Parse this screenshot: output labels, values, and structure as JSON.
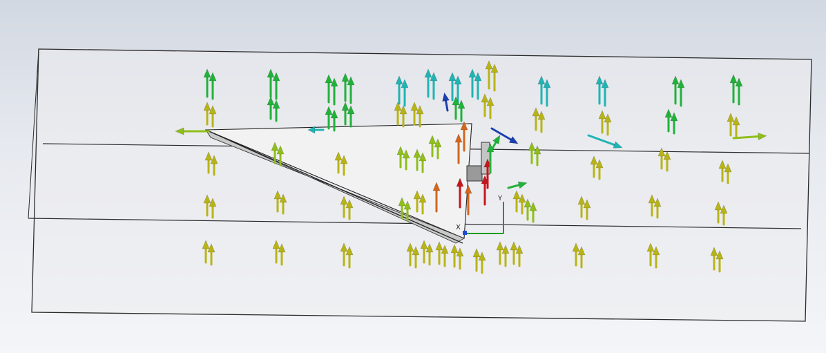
{
  "viewport": {
    "background_top": "#d2d8e2",
    "background_bottom": "#f4f5f8"
  },
  "triad": {
    "x_label": "X",
    "y_label": "Y",
    "x_color": "#c62828",
    "y_color": "#1b9e1b",
    "z_color": "#1e4bd8"
  },
  "vector_colors": {
    "low": "#b8b417",
    "mid_low": "#8fbf19",
    "mid": "#21b23a",
    "cyan": "#20b4b4",
    "blue": "#1a3fb0",
    "orange": "#d2661e",
    "red": "#c8141e"
  },
  "icons": {
    "triad": "coordinate-triad-icon"
  }
}
